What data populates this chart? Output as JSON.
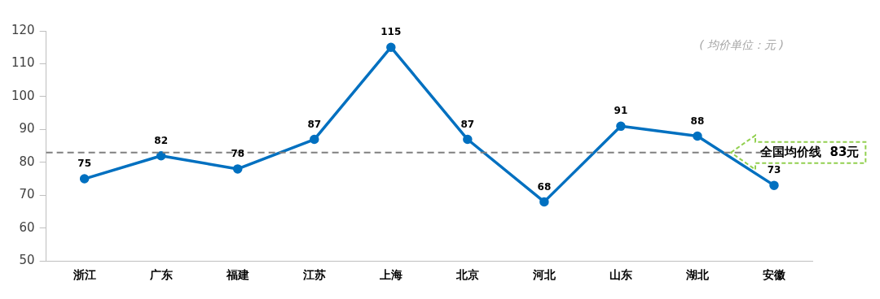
{
  "chart_data": {
    "type": "line",
    "categories": [
      "浙江",
      "广东",
      "福建",
      "江苏",
      "上海",
      "北京",
      "河北",
      "山东",
      "湖北",
      "安徽"
    ],
    "series": [
      {
        "color": "#0070c0",
        "values": [
          75,
          82,
          78,
          87,
          115,
          87,
          68,
          91,
          88,
          73
        ]
      }
    ],
    "ylim": [
      50,
      120
    ],
    "yticks": [
      50,
      60,
      70,
      80,
      90,
      100,
      110,
      120
    ],
    "grid": false,
    "legend": false,
    "marker": "circle",
    "line_style": "solid",
    "data_labels": true,
    "ref_lines": [
      {
        "axis": "y",
        "value": 83,
        "label": "全国均价线  83元",
        "color": "#808080",
        "line_style": "dashed"
      }
    ],
    "annotations": [
      "( 均价单位：元 )"
    ]
  }
}
